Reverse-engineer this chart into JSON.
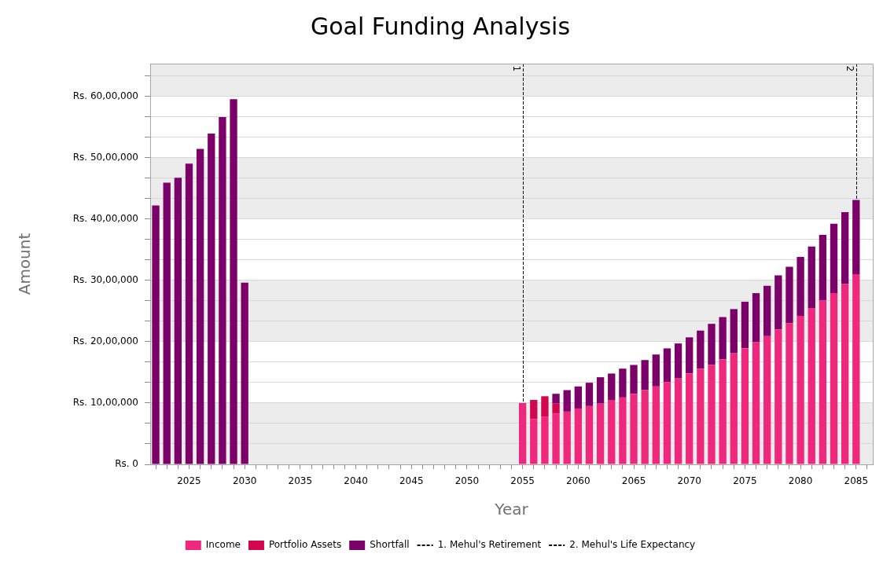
{
  "chart_data": {
    "type": "bar",
    "title": "Goal Funding Analysis",
    "xlabel": "Year",
    "ylabel": "Amount",
    "stacked": true,
    "legend": "bottom",
    "grid": "y",
    "x": [
      2022,
      2023,
      2024,
      2025,
      2026,
      2027,
      2028,
      2029,
      2030,
      2055,
      2056,
      2057,
      2058,
      2059,
      2060,
      2061,
      2062,
      2063,
      2064,
      2065,
      2066,
      2067,
      2068,
      2069,
      2070,
      2071,
      2072,
      2073,
      2074,
      2075,
      2076,
      2077,
      2078,
      2079,
      2080,
      2081,
      2082,
      2083,
      2084,
      2085
    ],
    "series": [
      {
        "name": "Income",
        "color": "#f0287d",
        "values": [
          null,
          null,
          null,
          null,
          null,
          null,
          null,
          null,
          null,
          1000000,
          740000,
          780000,
          830000,
          860000,
          910000,
          950000,
          990000,
          1050000,
          1090000,
          1150000,
          1210000,
          1270000,
          1340000,
          1400000,
          1480000,
          1560000,
          1620000,
          1710000,
          1810000,
          1890000,
          1990000,
          2090000,
          2200000,
          2300000,
          2420000,
          2540000,
          2670000,
          2790000,
          2940000,
          3100000
        ]
      },
      {
        "name": "Portfolio Assets",
        "color": "#d1064f",
        "values": [
          null,
          null,
          null,
          null,
          null,
          null,
          null,
          null,
          null,
          null,
          310000,
          330000,
          160000,
          null,
          null,
          null,
          null,
          null,
          null,
          null,
          null,
          null,
          null,
          null,
          null,
          null,
          null,
          null,
          null,
          null,
          null,
          null,
          null,
          null,
          null,
          null,
          null,
          null,
          null,
          null
        ]
      },
      {
        "name": "Shortfall",
        "color": "#7b006a",
        "values": [
          4220000,
          4590000,
          4670000,
          4900000,
          5140000,
          5390000,
          5660000,
          5950000,
          2960000,
          null,
          null,
          null,
          160000,
          350000,
          360000,
          380000,
          430000,
          430000,
          470000,
          470000,
          490000,
          520000,
          550000,
          570000,
          590000,
          620000,
          670000,
          690000,
          720000,
          760000,
          800000,
          820000,
          880000,
          920000,
          960000,
          1010000,
          1070000,
          1130000,
          1170000,
          1210000
        ]
      }
    ],
    "xlim": [
      2021.5,
      2086.5
    ],
    "xticks": [
      {
        "value": 2022,
        "label": null
      },
      {
        "value": 2023,
        "label": null
      },
      {
        "value": 2024,
        "label": null
      },
      2025,
      {
        "value": 2026,
        "label": null
      },
      {
        "value": 2027,
        "label": null
      },
      {
        "value": 2028,
        "label": null
      },
      {
        "value": 2029,
        "label": null
      },
      2030,
      {
        "value": 2031,
        "label": null
      },
      {
        "value": 2032,
        "label": null
      },
      {
        "value": 2033,
        "label": null
      },
      {
        "value": 2034,
        "label": null
      },
      2035,
      {
        "value": 2036,
        "label": null
      },
      {
        "value": 2037,
        "label": null
      },
      {
        "value": 2038,
        "label": null
      },
      {
        "value": 2039,
        "label": null
      },
      2040,
      {
        "value": 2041,
        "label": null
      },
      {
        "value": 2042,
        "label": null
      },
      {
        "value": 2043,
        "label": null
      },
      {
        "value": 2044,
        "label": null
      },
      2045,
      {
        "value": 2046,
        "label": null
      },
      {
        "value": 2047,
        "label": null
      },
      {
        "value": 2048,
        "label": null
      },
      {
        "value": 2049,
        "label": null
      },
      2050,
      {
        "value": 2051,
        "label": null
      },
      {
        "value": 2052,
        "label": null
      },
      {
        "value": 2053,
        "label": null
      },
      {
        "value": 2054,
        "label": null
      },
      2055,
      {
        "value": 2056,
        "label": null
      },
      {
        "value": 2057,
        "label": null
      },
      {
        "value": 2058,
        "label": null
      },
      {
        "value": 2059,
        "label": null
      },
      2060,
      {
        "value": 2061,
        "label": null
      },
      {
        "value": 2062,
        "label": null
      },
      {
        "value": 2063,
        "label": null
      },
      {
        "value": 2064,
        "label": null
      },
      2065,
      {
        "value": 2066,
        "label": null
      },
      {
        "value": 2067,
        "label": null
      },
      {
        "value": 2068,
        "label": null
      },
      {
        "value": 2069,
        "label": null
      },
      2070,
      {
        "value": 2071,
        "label": null
      },
      {
        "value": 2072,
        "label": null
      },
      {
        "value": 2073,
        "label": null
      },
      {
        "value": 2074,
        "label": null
      },
      2075,
      {
        "value": 2076,
        "label": null
      },
      {
        "value": 2077,
        "label": null
      },
      {
        "value": 2078,
        "label": null
      },
      {
        "value": 2079,
        "label": null
      },
      2080,
      {
        "value": 2081,
        "label": null
      },
      {
        "value": 2082,
        "label": null
      },
      {
        "value": 2083,
        "label": null
      },
      {
        "value": 2084,
        "label": null
      },
      2085,
      {
        "value": 2086,
        "label": null
      }
    ],
    "ylim": [
      0,
      6530000
    ],
    "yticks": [
      {
        "value": 0,
        "label": "Rs. 0"
      },
      {
        "value": 333333,
        "label": null
      },
      {
        "value": 666667,
        "label": null
      },
      {
        "value": 1000000,
        "label": "Rs. 10,00,000"
      },
      {
        "value": 1333333,
        "label": null
      },
      {
        "value": 1666667,
        "label": null
      },
      {
        "value": 2000000,
        "label": "Rs. 20,00,000"
      },
      {
        "value": 2333333,
        "label": null
      },
      {
        "value": 2666667,
        "label": null
      },
      {
        "value": 3000000,
        "label": "Rs. 30,00,000"
      },
      {
        "value": 3333333,
        "label": null
      },
      {
        "value": 3666667,
        "label": null
      },
      {
        "value": 4000000,
        "label": "Rs. 40,00,000"
      },
      {
        "value": 4333333,
        "label": null
      },
      {
        "value": 4666667,
        "label": null
      },
      {
        "value": 5000000,
        "label": "Rs. 50,00,000"
      },
      {
        "value": 5333333,
        "label": null
      },
      {
        "value": 5666667,
        "label": null
      },
      {
        "value": 6000000,
        "label": "Rs. 60,00,000"
      },
      {
        "value": 6333333,
        "label": null
      }
    ],
    "bands": [
      {
        "axis": "y",
        "from": 0,
        "to": 1000000,
        "color": "#ececec"
      },
      {
        "axis": "y",
        "from": 2000000,
        "to": 3000000,
        "color": "#ececec"
      },
      {
        "axis": "y",
        "from": 4000000,
        "to": 5000000,
        "color": "#ececec"
      },
      {
        "axis": "y",
        "from": 6000000,
        "to": 6530000,
        "color": "#ececec"
      }
    ],
    "ref_lines": [
      {
        "axis": "x",
        "value": 2055,
        "label": "1. Mehul's Retirement",
        "color": "#000000",
        "line_style": "dashed"
      },
      {
        "axis": "x",
        "value": 2085,
        "label": "2. Mehul's Life Expectancy",
        "color": "#000000",
        "line_style": "dashed"
      }
    ],
    "annotations": [
      {
        "text": "1",
        "x": 2055,
        "y": 6450000
      },
      {
        "text": "2",
        "x": 2085,
        "y": 6450000
      }
    ]
  }
}
